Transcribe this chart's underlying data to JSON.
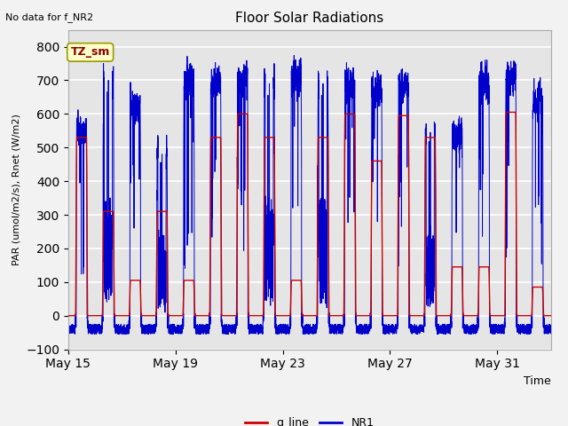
{
  "title": "Floor Solar Radiations",
  "xlabel": "Time",
  "ylabel": "PAR (umol/m2/s), Rnet (W/m2)",
  "top_left_text": "No data for f_NR2",
  "legend_label_text": "TZ_sm",
  "ylim": [
    -100,
    850
  ],
  "yticks": [
    -100,
    0,
    100,
    200,
    300,
    400,
    500,
    600,
    700,
    800
  ],
  "xtick_labels": [
    "May 15",
    "May 19",
    "May 23",
    "May 27",
    "May 31"
  ],
  "xtick_positions": [
    0,
    4,
    8,
    12,
    16
  ],
  "xlim": [
    0,
    18
  ],
  "bg_color": "#e5e5e5",
  "fig_bg_color": "#f2f2f2",
  "line_color_red": "#cc0000",
  "line_color_blue": "#0000cc",
  "grid_color": "#ffffff",
  "num_days": 18,
  "points_per_day": 288,
  "red_peaks": [
    530,
    310,
    105,
    310,
    105,
    530,
    600,
    530,
    105,
    530,
    600,
    460,
    595,
    530,
    145,
    145,
    605,
    85
  ],
  "blue_peaks": [
    555,
    700,
    625,
    480,
    700,
    695,
    700,
    690,
    705,
    690,
    685,
    665,
    680,
    545,
    535,
    700,
    710,
    635
  ]
}
